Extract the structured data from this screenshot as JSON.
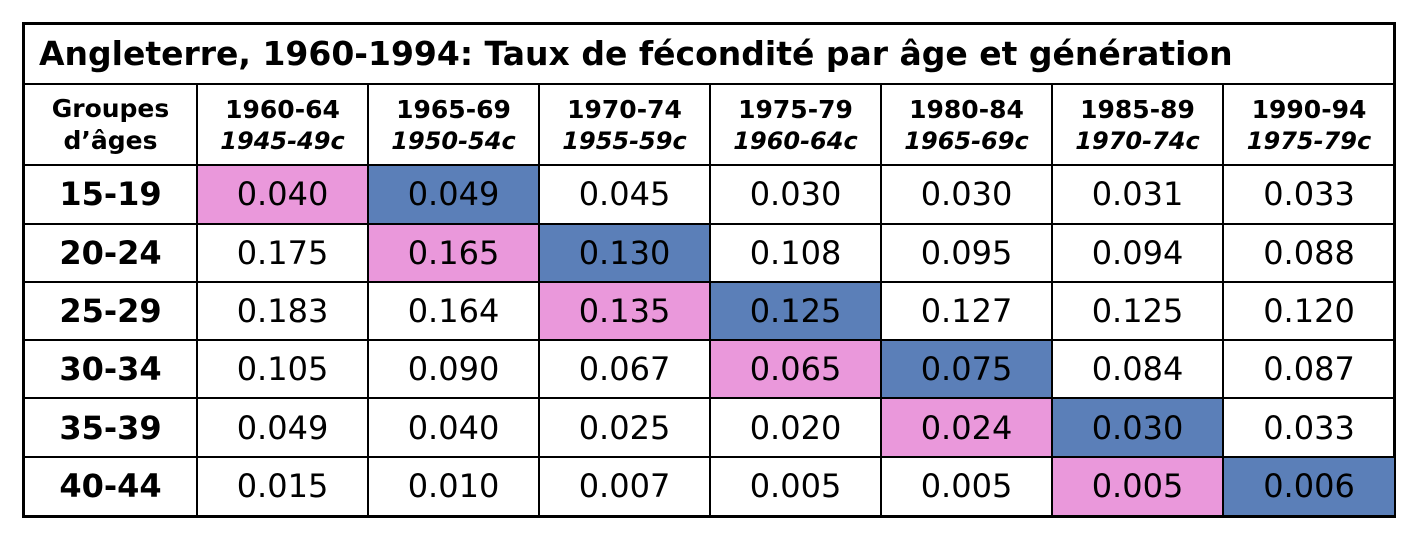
{
  "colors": {
    "highlight_pink": "#EA98DB",
    "highlight_blue": "#5B7FB8"
  },
  "chart_data": {
    "type": "table",
    "title": "Angleterre, 1960-1994: Taux de fécondité par âge et génération",
    "row_header_label": [
      "Groupes",
      "d’âges"
    ],
    "columns": [
      {
        "period": "1960-64",
        "cohort": "1945-49c"
      },
      {
        "period": "1965-69",
        "cohort": "1950-54c"
      },
      {
        "period": "1970-74",
        "cohort": "1955-59c"
      },
      {
        "period": "1975-79",
        "cohort": "1960-64c"
      },
      {
        "period": "1980-84",
        "cohort": "1965-69c"
      },
      {
        "period": "1985-89",
        "cohort": "1970-74c"
      },
      {
        "period": "1990-94",
        "cohort": "1975-79c"
      }
    ],
    "rows": [
      {
        "age": "15-19",
        "values": [
          "0.040",
          "0.049",
          "0.045",
          "0.030",
          "0.030",
          "0.031",
          "0.033"
        ],
        "highlight": [
          "pink",
          "blue",
          "",
          "",
          "",
          "",
          ""
        ]
      },
      {
        "age": "20-24",
        "values": [
          "0.175",
          "0.165",
          "0.130",
          "0.108",
          "0.095",
          "0.094",
          "0.088"
        ],
        "highlight": [
          "",
          "pink",
          "blue",
          "",
          "",
          "",
          ""
        ]
      },
      {
        "age": "25-29",
        "values": [
          "0.183",
          "0.164",
          "0.135",
          "0.125",
          "0.127",
          "0.125",
          "0.120"
        ],
        "highlight": [
          "",
          "",
          "pink",
          "blue",
          "",
          "",
          ""
        ]
      },
      {
        "age": "30-34",
        "values": [
          "0.105",
          "0.090",
          "0.067",
          "0.065",
          "0.075",
          "0.084",
          "0.087"
        ],
        "highlight": [
          "",
          "",
          "",
          "pink",
          "blue",
          "",
          ""
        ]
      },
      {
        "age": "35-39",
        "values": [
          "0.049",
          "0.040",
          "0.025",
          "0.020",
          "0.024",
          "0.030",
          "0.033"
        ],
        "highlight": [
          "",
          "",
          "",
          "",
          "pink",
          "blue",
          ""
        ]
      },
      {
        "age": "40-44",
        "values": [
          "0.015",
          "0.010",
          "0.007",
          "0.005",
          "0.005",
          "0.005",
          "0.006"
        ],
        "highlight": [
          "",
          "",
          "",
          "",
          "",
          "pink",
          "blue"
        ]
      }
    ]
  }
}
